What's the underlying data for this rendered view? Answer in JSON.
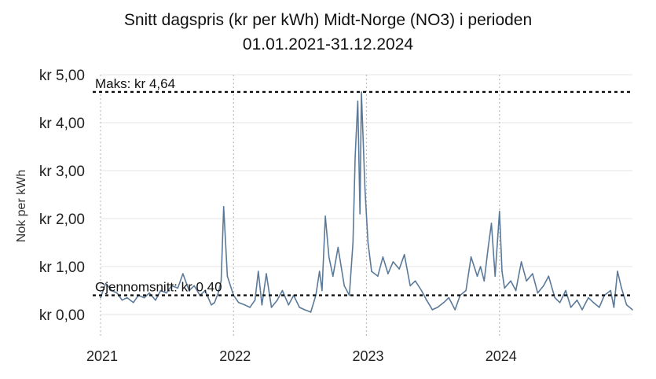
{
  "chart_data": {
    "type": "line",
    "title_line1": "Snitt dagspris (kr per kWh) Midt-Norge (NO3) i perioden",
    "title_line2": "01.01.2021-31.12.2024",
    "xlabel": "",
    "ylabel": "Nok per kWh",
    "ylim": [
      0,
      5
    ],
    "xlim": [
      "2021-01-01",
      "2024-12-31"
    ],
    "y_ticks": [
      {
        "value": 0,
        "label": "kr 0,00"
      },
      {
        "value": 1,
        "label": "kr 1,00"
      },
      {
        "value": 2,
        "label": "kr 2,00"
      },
      {
        "value": 3,
        "label": "kr 3,00"
      },
      {
        "value": 4,
        "label": "kr 4,00"
      },
      {
        "value": 5,
        "label": "kr 5,00"
      }
    ],
    "x_ticks": [
      {
        "value": "2021-01-01",
        "label": "2021"
      },
      {
        "value": "2022-01-01",
        "label": "2022"
      },
      {
        "value": "2023-01-01",
        "label": "2023"
      },
      {
        "value": "2024-01-01",
        "label": "2024"
      }
    ],
    "grid": true,
    "line_color": "#5b7a99",
    "reference_lines": [
      {
        "value": 4.64,
        "label": "Maks: kr 4,64"
      },
      {
        "value": 0.4,
        "label": "Gjennomsnitt: kr 0,40"
      }
    ],
    "series": [
      {
        "x": [
          "2021-01-01",
          "2021-01-15",
          "2021-02-01",
          "2021-02-15",
          "2021-03-01",
          "2021-03-15",
          "2021-04-01",
          "2021-04-15",
          "2021-05-01",
          "2021-05-15",
          "2021-06-01",
          "2021-06-15",
          "2021-07-01",
          "2021-07-15",
          "2021-08-01",
          "2021-08-15",
          "2021-09-01",
          "2021-09-15",
          "2021-10-01",
          "2021-10-15",
          "2021-11-01",
          "2021-11-10",
          "2021-11-20",
          "2021-11-28",
          "2021-12-05",
          "2021-12-15",
          "2022-01-01",
          "2022-01-15",
          "2022-02-01",
          "2022-02-15",
          "2022-03-01",
          "2022-03-10",
          "2022-03-20",
          "2022-04-01",
          "2022-04-15",
          "2022-05-01",
          "2022-05-15",
          "2022-06-01",
          "2022-06-15",
          "2022-07-01",
          "2022-07-15",
          "2022-08-01",
          "2022-08-15",
          "2022-08-25",
          "2022-09-01",
          "2022-09-10",
          "2022-09-20",
          "2022-10-01",
          "2022-10-15",
          "2022-11-01",
          "2022-11-15",
          "2022-11-25",
          "2022-12-01",
          "2022-12-08",
          "2022-12-14",
          "2022-12-18",
          "2022-12-22",
          "2022-12-28",
          "2023-01-05",
          "2023-01-15",
          "2023-02-01",
          "2023-02-15",
          "2023-03-01",
          "2023-03-15",
          "2023-04-01",
          "2023-04-15",
          "2023-05-01",
          "2023-05-15",
          "2023-06-01",
          "2023-06-15",
          "2023-07-01",
          "2023-07-15",
          "2023-08-01",
          "2023-08-15",
          "2023-09-01",
          "2023-09-15",
          "2023-10-01",
          "2023-10-15",
          "2023-11-01",
          "2023-11-10",
          "2023-11-20",
          "2023-12-01",
          "2023-12-10",
          "2023-12-20",
          "2024-01-01",
          "2024-01-08",
          "2024-01-15",
          "2024-02-01",
          "2024-02-15",
          "2024-03-01",
          "2024-03-15",
          "2024-04-01",
          "2024-04-15",
          "2024-05-01",
          "2024-05-15",
          "2024-06-01",
          "2024-06-15",
          "2024-07-01",
          "2024-07-15",
          "2024-08-01",
          "2024-08-15",
          "2024-09-01",
          "2024-09-15",
          "2024-10-01",
          "2024-10-15",
          "2024-11-01",
          "2024-11-10",
          "2024-11-20",
          "2024-12-01",
          "2024-12-15",
          "2024-12-31"
        ],
        "values": [
          0.35,
          0.65,
          0.5,
          0.45,
          0.3,
          0.35,
          0.25,
          0.4,
          0.35,
          0.45,
          0.3,
          0.5,
          0.45,
          0.6,
          0.55,
          0.85,
          0.5,
          0.6,
          0.4,
          0.5,
          0.2,
          0.25,
          0.45,
          0.7,
          2.25,
          0.8,
          0.4,
          0.25,
          0.2,
          0.15,
          0.3,
          0.9,
          0.2,
          0.85,
          0.15,
          0.3,
          0.5,
          0.2,
          0.4,
          0.15,
          0.1,
          0.05,
          0.4,
          0.9,
          0.5,
          2.05,
          1.2,
          0.8,
          1.4,
          0.6,
          0.4,
          1.5,
          3.3,
          4.45,
          2.1,
          4.64,
          3.8,
          2.6,
          1.5,
          0.9,
          0.8,
          1.2,
          0.85,
          1.1,
          0.95,
          1.25,
          0.6,
          0.7,
          0.5,
          0.3,
          0.1,
          0.15,
          0.25,
          0.35,
          0.1,
          0.4,
          0.5,
          1.2,
          0.8,
          1.0,
          0.7,
          1.4,
          1.9,
          0.8,
          2.15,
          0.9,
          0.55,
          0.7,
          0.5,
          1.1,
          0.7,
          0.85,
          0.45,
          0.6,
          0.8,
          0.35,
          0.25,
          0.5,
          0.15,
          0.3,
          0.1,
          0.35,
          0.25,
          0.15,
          0.4,
          0.5,
          0.15,
          0.9,
          0.55,
          0.2,
          0.1
        ]
      }
    ]
  }
}
